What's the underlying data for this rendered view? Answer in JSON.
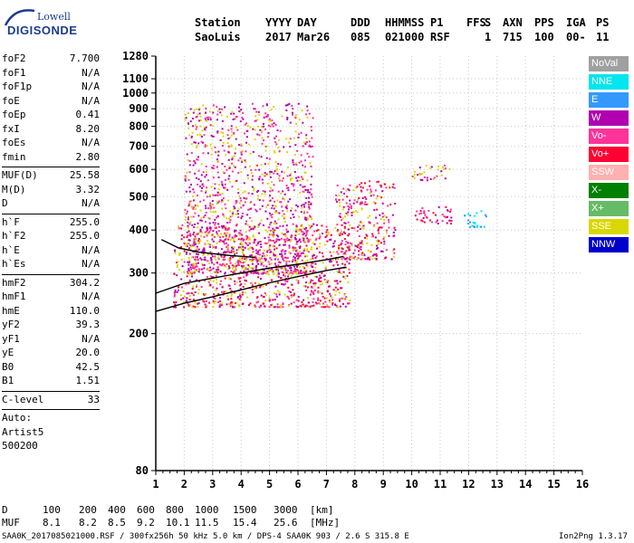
{
  "logo": {
    "line1": "Lowell",
    "line2": "DIGISONDE"
  },
  "header": {
    "row1": [
      "Station",
      "YYYY",
      "DAY",
      "DDD",
      "HHMMSS",
      "P1",
      "FFS",
      "S",
      "AXN",
      "PPS",
      "IGA",
      "PS"
    ],
    "row2": [
      "SaoLuis",
      "2017",
      "Mar26",
      "085",
      "021000",
      "RSF",
      "",
      "1",
      "715",
      "100",
      "00-",
      "11"
    ]
  },
  "params": [
    {
      "group": [
        {
          "k": "foF2",
          "v": "7.700"
        },
        {
          "k": "foF1",
          "v": "N/A"
        },
        {
          "k": "foF1p",
          "v": "N/A"
        },
        {
          "k": "foE",
          "v": "N/A"
        },
        {
          "k": "foEp",
          "v": "0.41"
        },
        {
          "k": "fxI",
          "v": "8.20"
        },
        {
          "k": "foEs",
          "v": "N/A"
        },
        {
          "k": "fmin",
          "v": "2.80"
        }
      ]
    },
    {
      "group": [
        {
          "k": "MUF(D)",
          "v": "25.58"
        },
        {
          "k": "M(D)",
          "v": "3.32"
        },
        {
          "k": "D",
          "v": "N/A"
        }
      ]
    },
    {
      "group": [
        {
          "k": "h`F",
          "v": "255.0"
        },
        {
          "k": "h`F2",
          "v": "255.0"
        },
        {
          "k": "h`E",
          "v": "N/A"
        },
        {
          "k": "h`Es",
          "v": "N/A"
        }
      ]
    },
    {
      "group": [
        {
          "k": "hmF2",
          "v": "304.2"
        },
        {
          "k": "hmF1",
          "v": "N/A"
        },
        {
          "k": "hmE",
          "v": "110.0"
        },
        {
          "k": "yF2",
          "v": "39.3"
        },
        {
          "k": "yF1",
          "v": "N/A"
        },
        {
          "k": "yE",
          "v": "20.0"
        },
        {
          "k": "B0",
          "v": "42.5"
        },
        {
          "k": "B1",
          "v": "1.51"
        }
      ]
    },
    {
      "group": [
        {
          "k": "C-level",
          "v": "33"
        }
      ]
    },
    {
      "group": [
        {
          "k": "Auto:",
          "v": ""
        },
        {
          "k": "Artist5",
          "v": ""
        },
        {
          "k": "500200",
          "v": ""
        }
      ]
    }
  ],
  "legend": [
    {
      "label": "NoVal",
      "color": "#a0a0a0"
    },
    {
      "label": "NNE",
      "color": "#00e5ee"
    },
    {
      "label": "E",
      "color": "#3399ff"
    },
    {
      "label": "W",
      "color": "#b000b0"
    },
    {
      "label": "Vo-",
      "color": "#ff3399"
    },
    {
      "label": "Vo+",
      "color": "#ff0033"
    },
    {
      "label": "SSW",
      "color": "#ffb0b0"
    },
    {
      "label": "X-",
      "color": "#008000"
    },
    {
      "label": "X+",
      "color": "#66bb66"
    },
    {
      "label": "SSE",
      "color": "#d8d800"
    },
    {
      "label": "NNW",
      "color": "#0000cc"
    }
  ],
  "muf_table": {
    "d_label": "D",
    "d_values": [
      "100",
      "200",
      "400",
      "600",
      "800",
      "1000",
      "1500",
      "3000"
    ],
    "d_unit": "[km]",
    "muf_label": "MUF",
    "muf_values": [
      "8.1",
      "8.2",
      "8.5",
      "9.2",
      "10.1",
      "11.5",
      "15.4",
      "25.6"
    ],
    "muf_unit": "[MHz]"
  },
  "footer": {
    "left": "SAA0K_2017085021000.RSF / 300fx256h 50 kHz 5.0 km / DPS-4 SAA0K 903 / 2.6 S 315.8 E",
    "right": "Ion2Png 1.3.17"
  },
  "chart_data": {
    "type": "scatter",
    "xlim": [
      1,
      16
    ],
    "ylim": [
      80,
      1280
    ],
    "y_scale": "log",
    "x_ticks": [
      1,
      2,
      3,
      4,
      5,
      6,
      7,
      8,
      9,
      10,
      11,
      12,
      13,
      14,
      15,
      16
    ],
    "y_ticks": [
      80,
      200,
      300,
      400,
      500,
      600,
      700,
      800,
      900,
      1000,
      1100,
      1280
    ],
    "grid": true,
    "legend_position": "right",
    "trace_f2_ordinary": {
      "x": [
        1.0,
        2.0,
        3.0,
        4.0,
        5.0,
        6.0,
        7.0,
        7.7
      ],
      "y": [
        232,
        245,
        256,
        268,
        281,
        293,
        305,
        312
      ]
    },
    "trace_f2_extra": {
      "x": [
        1.0,
        2.0,
        3.0,
        4.0,
        5.0,
        6.0,
        7.0,
        7.6
      ],
      "y": [
        262,
        280,
        290,
        300,
        310,
        318,
        328,
        335
      ]
    },
    "trace_upper": {
      "x": [
        1.2,
        1.8,
        2.5,
        3.5,
        4.5
      ],
      "y": [
        375,
        355,
        345,
        338,
        333
      ]
    },
    "echo_clusters": [
      {
        "x": [
          1.6,
          7.8
        ],
        "y": [
          240,
          420
        ],
        "colors": [
          "#ff0033",
          "#b000b0",
          "#ff3399",
          "#d8d800"
        ]
      },
      {
        "x": [
          2.0,
          6.5
        ],
        "y": [
          300,
          940
        ],
        "colors": [
          "#b000b0",
          "#d8d800",
          "#ff3399"
        ]
      },
      {
        "x": [
          7.3,
          9.4
        ],
        "y": [
          330,
          560
        ],
        "colors": [
          "#ff0033",
          "#b000b0",
          "#ff3399",
          "#d8d800"
        ]
      },
      {
        "x": [
          10.0,
          11.4
        ],
        "y": [
          420,
          470
        ],
        "colors": [
          "#ff0033",
          "#b000b0",
          "#ff3399"
        ]
      },
      {
        "x": [
          10.0,
          11.3
        ],
        "y": [
          560,
          620
        ],
        "colors": [
          "#b000b0",
          "#ff3399",
          "#d8d800"
        ]
      },
      {
        "x": [
          11.8,
          12.6
        ],
        "y": [
          410,
          460
        ],
        "colors": [
          "#00e5ee",
          "#3399ff"
        ]
      }
    ]
  }
}
